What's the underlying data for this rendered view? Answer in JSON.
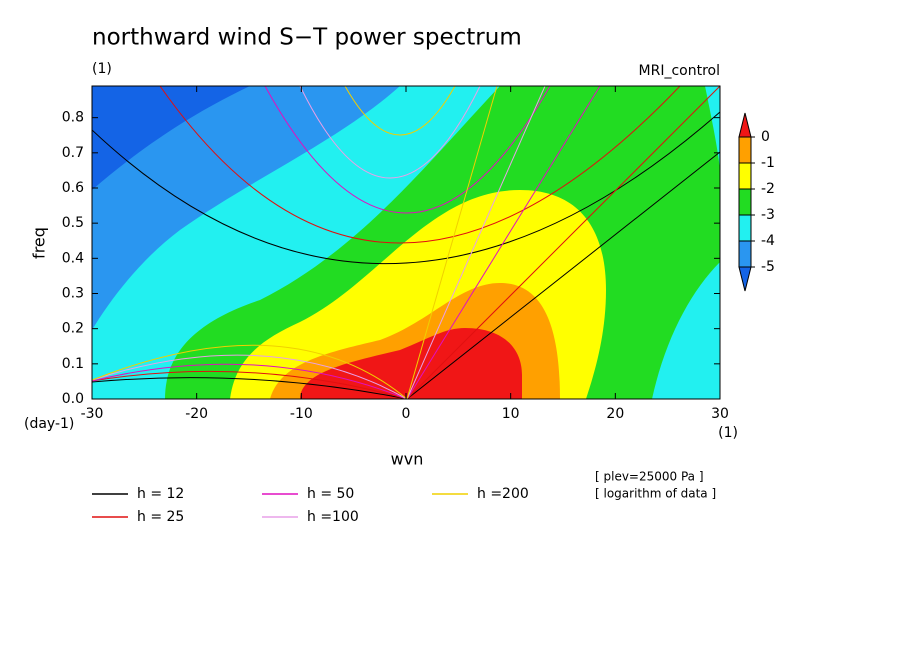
{
  "chart_data": {
    "type": "contour",
    "title": "northward wind S−T power spectrum",
    "subtitle": "(1)",
    "label_right": "MRI_control",
    "xlabel": "wvn",
    "ylabel": "freq",
    "x_unit": "(1)",
    "y_unit": "(day-1)",
    "xlim": [
      -30,
      30
    ],
    "xticks": [
      -30,
      -20,
      -10,
      0,
      10,
      20,
      30
    ],
    "ylim": [
      0,
      0.89
    ],
    "yticks": [
      {
        "value": 0,
        "label": "0.0"
      },
      0.1,
      0.2,
      0.3,
      0.4,
      0.5,
      0.6,
      0.7,
      0.8
    ],
    "levels": [
      0,
      -1,
      -2,
      -3,
      -4,
      -5
    ],
    "colors": [
      "#f01616",
      "#ffa000",
      "#ffff00",
      "#22dc22",
      "#22f0f0",
      "#2a96f0",
      "#1464e6"
    ],
    "legend": [
      {
        "name": "h = 12",
        "color": "#000000"
      },
      {
        "name": "h = 25",
        "color": "#e01010"
      },
      {
        "name": "h = 50",
        "color": "#e010c0"
      },
      {
        "name": "h =100",
        "color": "#e8a0e8"
      },
      {
        "name": "h =200",
        "color": "#f0d000"
      }
    ],
    "notes": [
      "[ plev=25000 Pa ]",
      "[ logarithm of data ]"
    ]
  }
}
